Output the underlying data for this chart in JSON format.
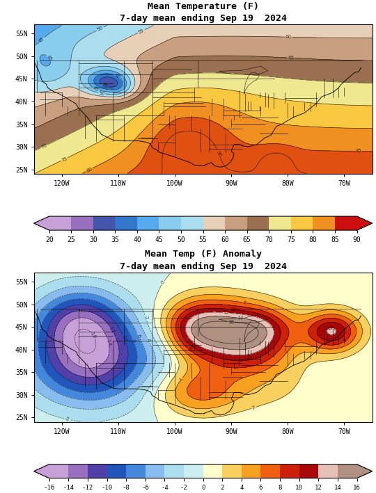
{
  "title1": "Mean Temperature (F)",
  "subtitle1": "7-day mean ending Sep 19  2024",
  "title2": "Mean Temp (F) Anomaly",
  "subtitle2": "7-day mean ending Sep 19  2024",
  "temp_levels": [
    20,
    25,
    30,
    35,
    40,
    45,
    50,
    55,
    60,
    65,
    70,
    75,
    80,
    85,
    90
  ],
  "temp_colors": [
    "#c8a0d8",
    "#9970c0",
    "#4455aa",
    "#3377cc",
    "#55aaee",
    "#88ccee",
    "#aaddee",
    "#e8d0b8",
    "#c8a080",
    "#9a7050",
    "#f0e890",
    "#f8c840",
    "#f09020",
    "#e05010",
    "#cc1010"
  ],
  "anom_levels": [
    -16,
    -14,
    -12,
    -10,
    -8,
    -6,
    -4,
    -2,
    0,
    2,
    4,
    6,
    8,
    10,
    12,
    14,
    16
  ],
  "anom_colors": [
    "#c8a0d8",
    "#9970c0",
    "#5040a8",
    "#2255bb",
    "#4488dd",
    "#88bbee",
    "#aaddee",
    "#cceeee",
    "#ffffcc",
    "#f8d060",
    "#f8a020",
    "#ee6010",
    "#cc2008",
    "#aa0808",
    "#e8c0b8",
    "#b09080"
  ],
  "map_extent": [
    -125,
    -65,
    24,
    57
  ],
  "map_xticks": [
    -120,
    -110,
    -100,
    -90,
    -80,
    -70
  ],
  "map_xtick_labels": [
    "120W",
    "110W",
    "100W",
    "90W",
    "80W",
    "70W"
  ],
  "map_yticks": [
    25,
    30,
    35,
    40,
    45,
    50,
    55
  ],
  "map_ytick_labels": [
    "25N",
    "30N",
    "35N",
    "40N",
    "45N",
    "50N",
    "55N"
  ],
  "figure_bg": "#ffffff",
  "font_family": "monospace"
}
